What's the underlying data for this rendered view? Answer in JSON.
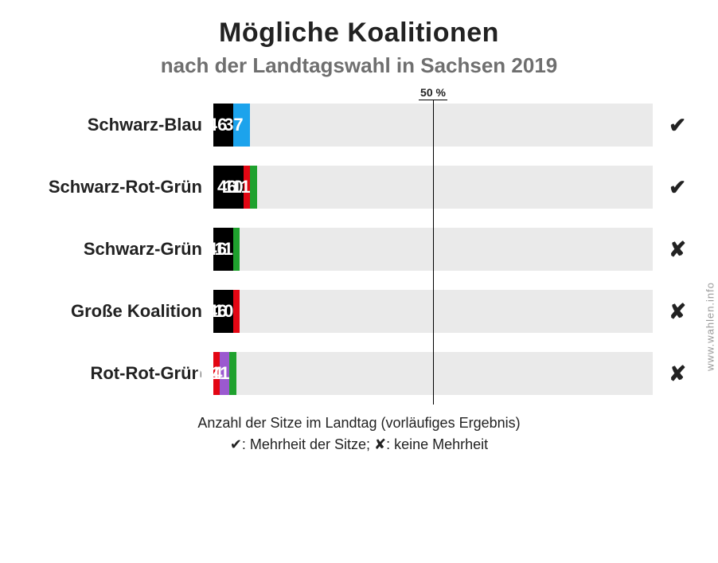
{
  "title": "Mögliche Koalitionen",
  "subtitle": "nach der Landtagswahl in Sachsen 2019",
  "title_fontsize": 34,
  "subtitle_fontsize": 26,
  "row_label_fontsize": 22,
  "seg_label_fontsize": 22,
  "mark_fontsize": 26,
  "chart": {
    "total_seats": 118,
    "majority_threshold_label": "50 %",
    "tick_underline_width": 36,
    "bar_bg_color": "#eaeaea",
    "label_col_width": 228,
    "mark_col_width": 42,
    "party_colors": {
      "cdu": "#000000",
      "afd": "#1ca3ec",
      "spd": "#e30613",
      "gruene": "#1fa12e",
      "linke": "#9b59d0"
    },
    "rows": [
      {
        "label": "Schwarz-Blau",
        "majority": true,
        "segments": [
          {
            "party": "cdu",
            "seats": 46
          },
          {
            "party": "afd",
            "seats": 37
          }
        ]
      },
      {
        "label": "Schwarz-Rot-Grün",
        "majority": true,
        "segments": [
          {
            "party": "cdu",
            "seats": 46
          },
          {
            "party": "spd",
            "seats": 10
          },
          {
            "party": "gruene",
            "seats": 11
          }
        ]
      },
      {
        "label": "Schwarz-Grün",
        "majority": false,
        "segments": [
          {
            "party": "cdu",
            "seats": 46
          },
          {
            "party": "gruene",
            "seats": 11
          }
        ]
      },
      {
        "label": "Große Koalition",
        "majority": false,
        "segments": [
          {
            "party": "cdu",
            "seats": 46
          },
          {
            "party": "spd",
            "seats": 10
          }
        ]
      },
      {
        "label": "Rot-Rot-Grün",
        "majority": false,
        "segments": [
          {
            "party": "spd",
            "seats": 10
          },
          {
            "party": "linke",
            "seats": 14
          },
          {
            "party": "gruene",
            "seats": 11
          }
        ]
      }
    ]
  },
  "marks": {
    "yes": "✔",
    "no": "✘"
  },
  "footer_line1": "Anzahl der Sitze im Landtag (vorläufiges Ergebnis)",
  "footer_line2": "✔: Mehrheit der Sitze; ✘: keine Mehrheit",
  "watermark": "www.wahlen.info"
}
